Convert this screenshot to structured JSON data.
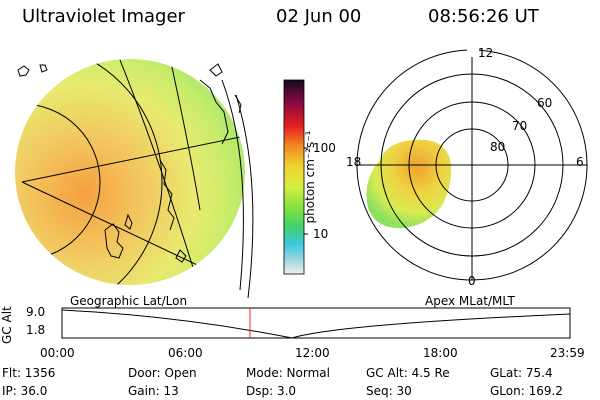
{
  "header": {
    "instrument": "Ultraviolet Imager",
    "date": "02 Jun 00",
    "time": "08:56:26 UT"
  },
  "colorbar": {
    "unit_label": "photon cm⁻²s⁻¹",
    "tick_100": "100",
    "tick_10": "10"
  },
  "polar_plot": {
    "mlt_labels": {
      "top": "12",
      "bottom": "0",
      "left": "18",
      "right": "6"
    },
    "lat_labels": [
      "60",
      "70",
      "80"
    ]
  },
  "timeline": {
    "left_label": "Geographic Lat/Lon",
    "right_label": "Apex MLat/MLT",
    "y_axis_label": "GC Alt",
    "y_top": "9.0",
    "y_bottom": "1.8",
    "x_ticks": [
      "00:00",
      "06:00",
      "12:00",
      "18:00",
      "23:59"
    ],
    "cursor_color": "#ff2020"
  },
  "status": {
    "flt": "Flt: 1356",
    "door": "Door: Open",
    "mode": "Mode: Normal",
    "gc_alt": "GC Alt: 4.5 Re",
    "glat": "GLat:  75.4",
    "ip": "IP: 36.0",
    "gain": "Gain: 13",
    "dsp": "Dsp:     3.0",
    "seq": "Seq: 30",
    "glon": "GLon: 169.2"
  }
}
